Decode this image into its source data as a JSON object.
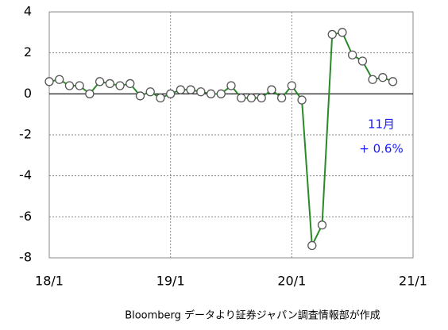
{
  "chart_data": {
    "type": "line",
    "categories": [
      "18/1",
      null,
      null,
      null,
      null,
      null,
      null,
      null,
      null,
      null,
      null,
      null,
      "19/1",
      null,
      null,
      null,
      null,
      null,
      null,
      null,
      null,
      null,
      null,
      null,
      "20/1",
      null,
      null,
      null,
      null,
      null,
      null,
      null,
      null,
      null,
      null,
      null,
      "21/1"
    ],
    "series": [
      {
        "color": "#2a8a2a",
        "values": [
          0.6,
          0.7,
          0.4,
          0.4,
          0.0,
          0.6,
          0.5,
          0.4,
          0.5,
          -0.1,
          0.1,
          -0.2,
          0.0,
          0.2,
          0.2,
          0.1,
          0.0,
          0.0,
          0.4,
          -0.2,
          -0.2,
          -0.2,
          0.2,
          -0.2,
          0.4,
          -0.3,
          -7.4,
          -6.4,
          2.9,
          3.0,
          1.9,
          1.6,
          0.7,
          0.8,
          0.6,
          null,
          null
        ]
      }
    ],
    "ylim": [
      -8,
      4
    ],
    "yticks": [
      4,
      2,
      0,
      -2,
      -4,
      -6,
      -8
    ],
    "grid": true,
    "annotations": [
      "11月",
      "+ 0.6%"
    ],
    "source": "Bloomberg データより証券ジャパン調査情報部が作成"
  }
}
